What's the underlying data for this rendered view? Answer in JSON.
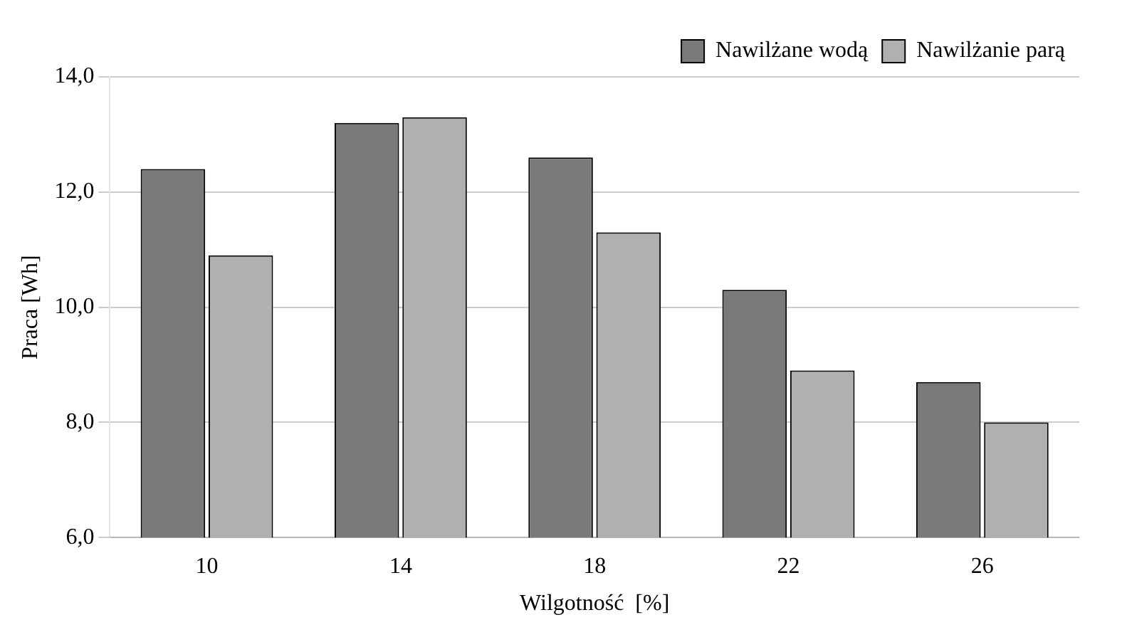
{
  "chart_data": {
    "type": "bar",
    "xlabel": "Wilgotność  [%]",
    "ylabel": "Praca [Wh]",
    "categories": [
      "10",
      "14",
      "18",
      "22",
      "26"
    ],
    "series": [
      {
        "name": "Nawilżane wodą",
        "color": "#7a7a7a",
        "values": [
          12.4,
          13.2,
          12.6,
          10.3,
          8.7
        ]
      },
      {
        "name": "Nawilżanie parą",
        "color": "#b0b0b0",
        "values": [
          10.9,
          13.3,
          11.3,
          8.9,
          8.0
        ]
      }
    ],
    "ylim": [
      6,
      14
    ],
    "yticks": [
      {
        "value": 6,
        "label": "6,0"
      },
      {
        "value": 8,
        "label": "8,0"
      },
      {
        "value": 10,
        "label": "10,0"
      },
      {
        "value": 12,
        "label": "12,0"
      },
      {
        "value": 14,
        "label": "14,0"
      }
    ],
    "grid": "y",
    "legend": "top right"
  }
}
